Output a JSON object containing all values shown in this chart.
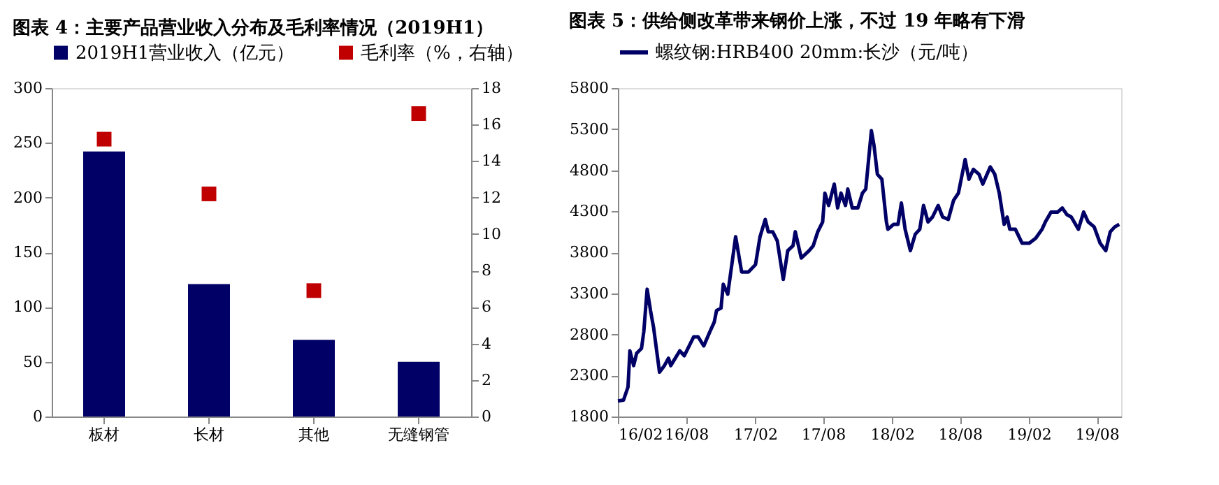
{
  "chart_data": [
    {
      "type": "bar",
      "title": "图表 4：主要产品营业收入分布及毛利率情况（2019H1）",
      "categories": [
        "板材",
        "长材",
        "其他",
        "无缝钢管"
      ],
      "series": [
        {
          "name": "2019H1营业收入（亿元）",
          "color": "#000066",
          "values": [
            242,
            121,
            70,
            50
          ]
        },
        {
          "name": "毛利率（%，右轴）",
          "color": "#c00000",
          "type": "scatter",
          "axis": "y2",
          "marker": "square",
          "values": [
            15.2,
            12.2,
            6.9,
            16.6
          ]
        }
      ],
      "ylim": [
        0,
        300
      ],
      "yticks": [
        0,
        50,
        100,
        150,
        200,
        250,
        300
      ],
      "y2lim": [
        0,
        18
      ],
      "y2ticks": [
        0,
        2,
        4,
        6,
        8,
        10,
        12,
        14,
        16,
        18
      ],
      "grid": false,
      "legend": "top"
    },
    {
      "type": "line",
      "title": "图表 5：供给侧改革带来钢价上涨，不过 19 年略有下滑",
      "x": [
        "2016-02-01",
        "2016-02-16",
        "2016-02-28",
        "2016-03-04",
        "2016-03-14",
        "2016-03-22",
        "2016-04-04",
        "2016-04-10",
        "2016-04-19",
        "2016-04-28",
        "2016-05-06",
        "2016-05-22",
        "2016-06-04",
        "2016-06-15",
        "2016-06-21",
        "2016-07-15",
        "2016-07-27",
        "2016-08-21",
        "2016-09-02",
        "2016-09-17",
        "2016-10-03",
        "2016-10-15",
        "2016-10-21",
        "2016-11-02",
        "2016-11-08",
        "2016-11-20",
        "2016-11-29",
        "2016-12-11",
        "2016-12-27",
        "2017-01-14",
        "2017-02-02",
        "2017-02-14",
        "2017-02-28",
        "2017-03-08",
        "2017-03-20",
        "2017-04-01",
        "2017-04-17",
        "2017-04-29",
        "2017-05-13",
        "2017-05-19",
        "2017-06-04",
        "2017-06-25",
        "2017-07-06",
        "2017-07-18",
        "2017-07-31",
        "2017-08-06",
        "2017-08-16",
        "2017-08-31",
        "2017-09-09",
        "2017-09-18",
        "2017-09-30",
        "2017-10-06",
        "2017-10-18",
        "2017-11-02",
        "2017-11-14",
        "2017-11-23",
        "2017-12-08",
        "2017-12-15",
        "2017-12-24",
        "2018-01-05",
        "2018-01-17",
        "2018-01-21",
        "2018-02-05",
        "2018-02-17",
        "2018-02-26",
        "2018-03-08",
        "2018-03-22",
        "2018-04-04",
        "2018-04-16",
        "2018-04-26",
        "2018-05-08",
        "2018-05-20",
        "2018-06-04",
        "2018-06-16",
        "2018-07-01",
        "2018-07-15",
        "2018-07-28",
        "2018-08-15",
        "2018-08-25",
        "2018-09-06",
        "2018-09-21",
        "2018-10-01",
        "2018-10-21",
        "2018-11-02",
        "2018-11-14",
        "2018-11-27",
        "2018-12-05",
        "2018-12-12",
        "2018-12-27",
        "2019-01-14",
        "2019-02-02",
        "2019-02-19",
        "2019-03-08",
        "2019-03-17",
        "2019-04-01",
        "2019-04-19",
        "2019-05-01",
        "2019-05-13",
        "2019-05-25",
        "2019-06-13",
        "2019-06-27",
        "2019-07-09",
        "2019-07-25",
        "2019-08-10",
        "2019-08-25",
        "2019-09-06",
        "2019-09-18",
        "2019-09-30"
      ],
      "series": [
        {
          "name": "螺纹钢:HRB400 20mm:长沙（元/吨）",
          "color": "#000066",
          "values": [
            1990,
            2000,
            2160,
            2600,
            2420,
            2570,
            2630,
            2830,
            3350,
            3090,
            2890,
            2340,
            2420,
            2510,
            2420,
            2600,
            2540,
            2770,
            2770,
            2660,
            2830,
            2950,
            3090,
            3120,
            3410,
            3290,
            3590,
            3990,
            3560,
            3560,
            3650,
            3990,
            4200,
            4050,
            4050,
            3940,
            3470,
            3820,
            3880,
            4050,
            3730,
            3820,
            3880,
            4050,
            4170,
            4520,
            4370,
            4630,
            4340,
            4520,
            4370,
            4570,
            4340,
            4340,
            4520,
            4570,
            5280,
            5100,
            4750,
            4690,
            4170,
            4080,
            4140,
            4140,
            4400,
            4080,
            3820,
            4020,
            4080,
            4370,
            4170,
            4230,
            4370,
            4230,
            4200,
            4430,
            4520,
            4930,
            4690,
            4810,
            4750,
            4630,
            4840,
            4750,
            4520,
            4140,
            4230,
            4080,
            4080,
            3910,
            3910,
            3970,
            4080,
            4170,
            4290,
            4290,
            4340,
            4260,
            4230,
            4080,
            4290,
            4170,
            4110,
            3910,
            3820,
            4050,
            4110,
            4140
          ]
        }
      ],
      "xlim": [
        "2016-02-01",
        "2019-10-05"
      ],
      "xticks": [
        {
          "value": "2016-02-01",
          "label": "16/02"
        },
        {
          "value": "2016-08-01",
          "label": "16/08"
        },
        {
          "value": "2017-02-01",
          "label": "17/02"
        },
        {
          "value": "2017-08-01",
          "label": "17/08"
        },
        {
          "value": "2018-02-01",
          "label": "18/02"
        },
        {
          "value": "2018-08-01",
          "label": "18/08"
        },
        {
          "value": "2019-02-01",
          "label": "19/02"
        },
        {
          "value": "2019-08-01",
          "label": "19/08"
        }
      ],
      "ylim": [
        1800,
        5800
      ],
      "yticks": [
        1800,
        2300,
        2800,
        3300,
        3800,
        4300,
        4800,
        5300,
        5800
      ],
      "grid": false,
      "legend": "top",
      "marker": "none",
      "line_style": "solid"
    }
  ]
}
